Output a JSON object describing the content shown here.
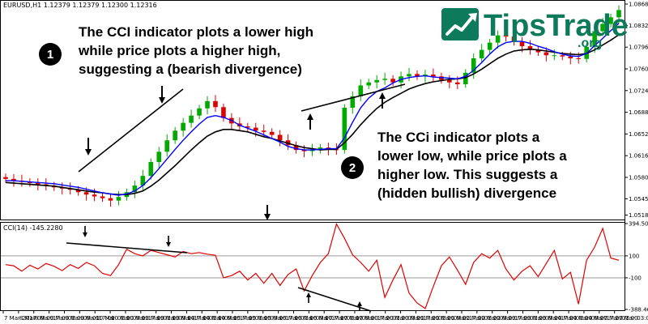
{
  "chart_data": [
    {
      "type": "candlestick",
      "symbol_label": "EURUSD,H1  1.12379 1.12379 1.12300 1.12316",
      "ylim": [
        1.0512,
        1.0872
      ],
      "y_ticks": [
        "1.08680",
        "1.08325",
        "1.07965",
        "1.07605",
        "1.07245",
        "1.06885",
        "1.06525",
        "1.06165",
        "1.05805",
        "1.05450",
        "1.05180"
      ],
      "colors": {
        "up": "#00aa00",
        "down": "#dd0000",
        "ma_fast": "#0000ff",
        "ma_slow": "#000000"
      },
      "close": [
        1.0578,
        1.0575,
        1.0573,
        1.0571,
        1.0569,
        1.0567,
        1.0564,
        1.0562,
        1.056,
        1.0556,
        1.0552,
        1.0549,
        1.0546,
        1.0542,
        1.0548,
        1.0556,
        1.0567,
        1.0583,
        1.0606,
        1.0623,
        1.0642,
        1.0658,
        1.0671,
        1.0683,
        1.0695,
        1.0707,
        1.0697,
        1.0679,
        1.067,
        1.0665,
        1.0663,
        1.0658,
        1.0656,
        1.0651,
        1.0642,
        1.0634,
        1.0626,
        1.0624,
        1.0626,
        1.063,
        1.0627,
        1.0626,
        1.0696,
        1.0715,
        1.0733,
        1.0738,
        1.0742,
        1.0744,
        1.0738,
        1.0748,
        1.0752,
        1.0748,
        1.0751,
        1.0748,
        1.0742,
        1.0738,
        1.0735,
        1.0754,
        1.0778,
        1.0792,
        1.0804,
        1.0816,
        1.0814,
        1.0805,
        1.0798,
        1.0792,
        1.0788,
        1.0783,
        1.0783,
        1.0781,
        1.0778,
        1.0777,
        1.0797,
        1.0823,
        1.0835,
        1.0846,
        1.0858
      ],
      "ma_fast": [
        1.0575,
        1.0575,
        1.0574,
        1.0573,
        1.0572,
        1.0571,
        1.057,
        1.0568,
        1.0566,
        1.0564,
        1.0561,
        1.0558,
        1.0555,
        1.0553,
        1.0551,
        1.0553,
        1.0558,
        1.0567,
        1.058,
        1.0595,
        1.0611,
        1.0627,
        1.0642,
        1.0656,
        1.0669,
        1.068,
        1.0683,
        1.068,
        1.0675,
        1.0667,
        1.0662,
        1.0657,
        1.0651,
        1.0645,
        1.0639,
        1.0632,
        1.0628,
        1.0626,
        1.0626,
        1.0627,
        1.0628,
        1.0628,
        1.0646,
        1.0672,
        1.0696,
        1.0712,
        1.0723,
        1.0729,
        1.0737,
        1.0743,
        1.0746,
        1.0748,
        1.0749,
        1.0747,
        1.0746,
        1.0745,
        1.0744,
        1.0748,
        1.0758,
        1.0771,
        1.0785,
        1.0797,
        1.0804,
        1.0806,
        1.0806,
        1.0803,
        1.0798,
        1.0794,
        1.0789,
        1.0785,
        1.0782,
        1.0781,
        1.0786,
        1.0799,
        1.0811,
        1.0824,
        1.0836
      ],
      "ma_slow": [
        1.0572,
        1.0571,
        1.057,
        1.0569,
        1.0568,
        1.0567,
        1.0566,
        1.0564,
        1.0562,
        1.056,
        1.0558,
        1.0556,
        1.0555,
        1.0553,
        1.0552,
        1.0552,
        1.0554,
        1.0558,
        1.0566,
        1.0576,
        1.0588,
        1.06,
        1.0613,
        1.0626,
        1.0638,
        1.0649,
        1.0656,
        1.066,
        1.066,
        1.0658,
        1.0656,
        1.0652,
        1.0648,
        1.0645,
        1.0641,
        1.0637,
        1.0633,
        1.063,
        1.0628,
        1.0626,
        1.0627,
        1.0627,
        1.0638,
        1.0652,
        1.0668,
        1.0682,
        1.0695,
        1.0705,
        1.0713,
        1.072,
        1.0727,
        1.0732,
        1.0736,
        1.0739,
        1.0741,
        1.0743,
        1.0744,
        1.0746,
        1.0752,
        1.076,
        1.0769,
        1.0778,
        1.0785,
        1.079,
        1.0792,
        1.0793,
        1.0792,
        1.079,
        1.0788,
        1.0786,
        1.0785,
        1.0784,
        1.0786,
        1.0792,
        1.08,
        1.0808,
        1.0817
      ]
    },
    {
      "type": "line",
      "label": "CCI(14) -145.2280",
      "ylim": [
        -388.464,
        394.501
      ],
      "y_ticks": [
        "394.5016",
        "100",
        "-100",
        "-388.464"
      ],
      "levels": [
        100,
        -100
      ],
      "color": "#e00000",
      "values": [
        20,
        10,
        -40,
        15,
        -20,
        30,
        5,
        -35,
        20,
        -15,
        40,
        10,
        -60,
        -80,
        20,
        160,
        120,
        100,
        150,
        130,
        110,
        90,
        140,
        120,
        130,
        115,
        105,
        -100,
        -80,
        -40,
        -120,
        -60,
        -150,
        -60,
        -170,
        -70,
        -20,
        -220,
        -80,
        40,
        120,
        390,
        260,
        110,
        40,
        -40,
        60,
        -280,
        -120,
        20,
        -240,
        -330,
        -380,
        -180,
        10,
        90,
        -30,
        -160,
        40,
        120,
        80,
        150,
        -20,
        -120,
        -40,
        10,
        -90,
        30,
        150,
        -110,
        -50,
        -340,
        60,
        180,
        350,
        80,
        60
      ]
    }
  ],
  "x_axis": {
    "labels": [
      "7 Mar 2017",
      "8 Mar 09:00",
      "8 Mar 17:00",
      "9 Mar 01:00",
      "9 Mar 09:00",
      "9 Mar 17:00",
      "10 Mar 01:00",
      "10 Mar 09:00",
      "10 Mar 17:00",
      "13 Mar 01:00",
      "13 Mar 09:00",
      "13 Mar 17:00",
      "14 Mar 01:00",
      "14 Mar 09:00",
      "14 Mar 17:00",
      "15 Mar 01:00",
      "15 Mar 09:00",
      "15 Mar 17:00",
      "16 Mar 01:00",
      "16 Mar 09:00",
      "16 Mar 17:00",
      "17 Mar 01:00",
      "17 Mar 09:00",
      "17 Mar 17:00",
      "20 Mar 01:00",
      "20 Mar 09:00",
      "20 Mar 17:00",
      "21 Mar 01:00",
      "21 Mar 09:00",
      "21 Mar 17:00",
      "22 Mar 01:00",
      "22 Mar 09:00",
      "22 Mar 17:00",
      "23 Mar 01:00",
      "23 Mar 09:00",
      "23 Mar 17:00",
      "24 Mar 01:00",
      "24 Mar 09:00",
      "24 Mar 17:00",
      "27 Mar 01:00",
      "27 Mar 03:00"
    ]
  },
  "annotations": {
    "badge1": "1",
    "note1": [
      "The CCI indicator plots a lower high",
      "while price plots a higher high,",
      "suggesting a (bearish divergence)"
    ],
    "badge2": "2",
    "note2": [
      "The CCi indicator plots a",
      "lower low, while price plots a",
      "higher low. This suggests a",
      "(hidden bullish) divergence"
    ]
  },
  "brand": {
    "name": "TipsTrade",
    "tld": ".org",
    "color": "#0e7a5c"
  }
}
